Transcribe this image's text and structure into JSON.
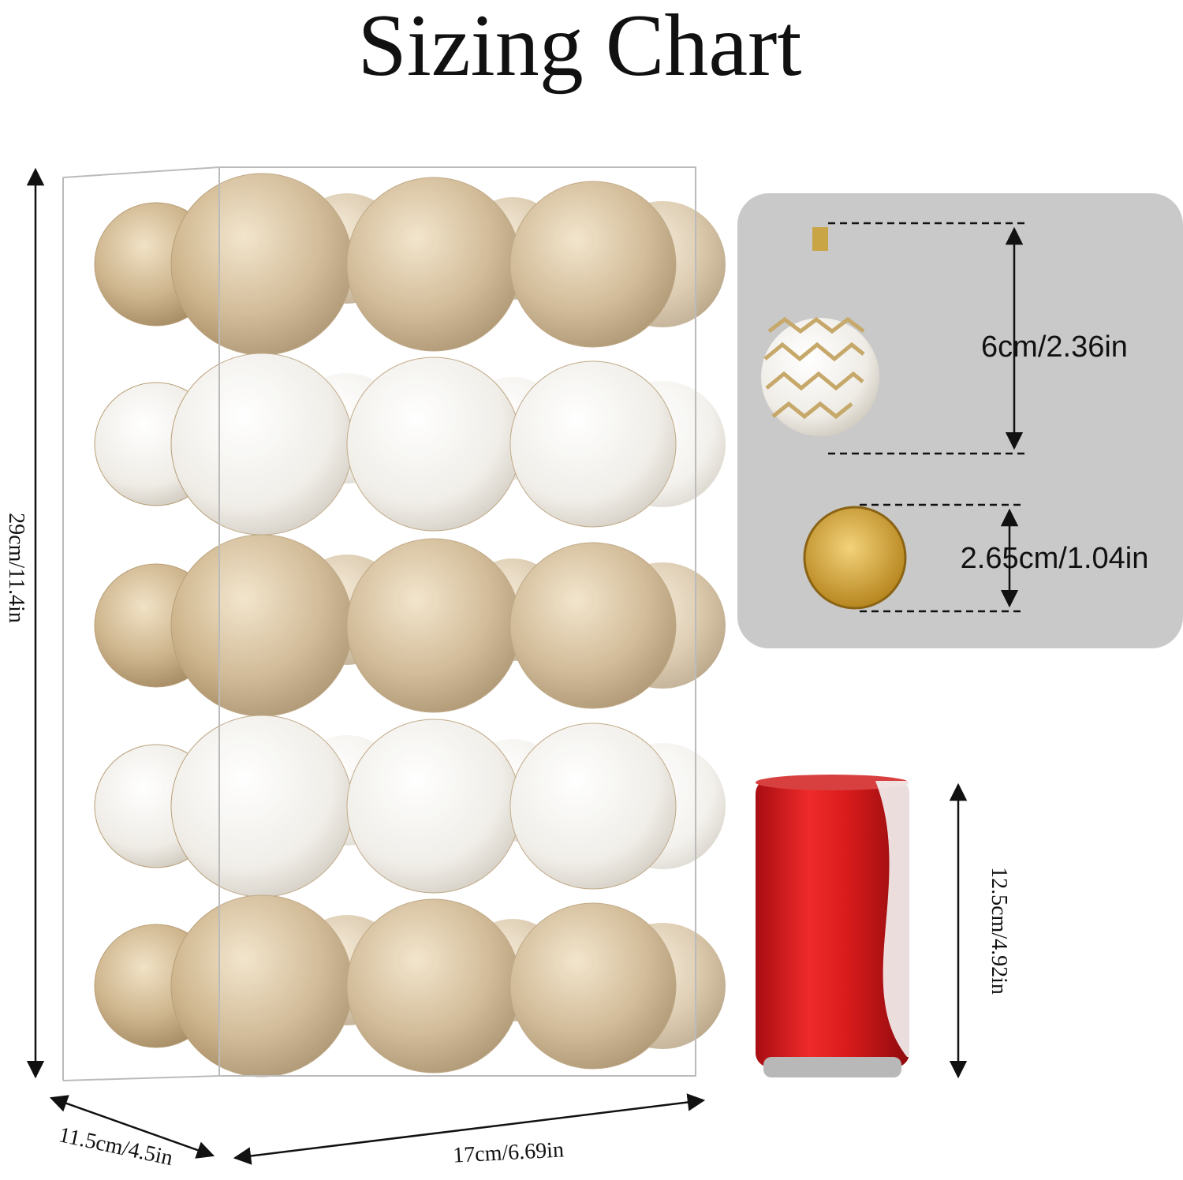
{
  "title": "Sizing Chart",
  "box": {
    "height": "29cm/11.4in",
    "depth": "11.5cm/4.5in",
    "width": "17cm/6.69in"
  },
  "ornament": {
    "diameter": "6cm/2.36in"
  },
  "coin": {
    "diameter": "2.65cm/1.04in"
  },
  "can": {
    "height": "12.5cm/4.92in"
  }
}
